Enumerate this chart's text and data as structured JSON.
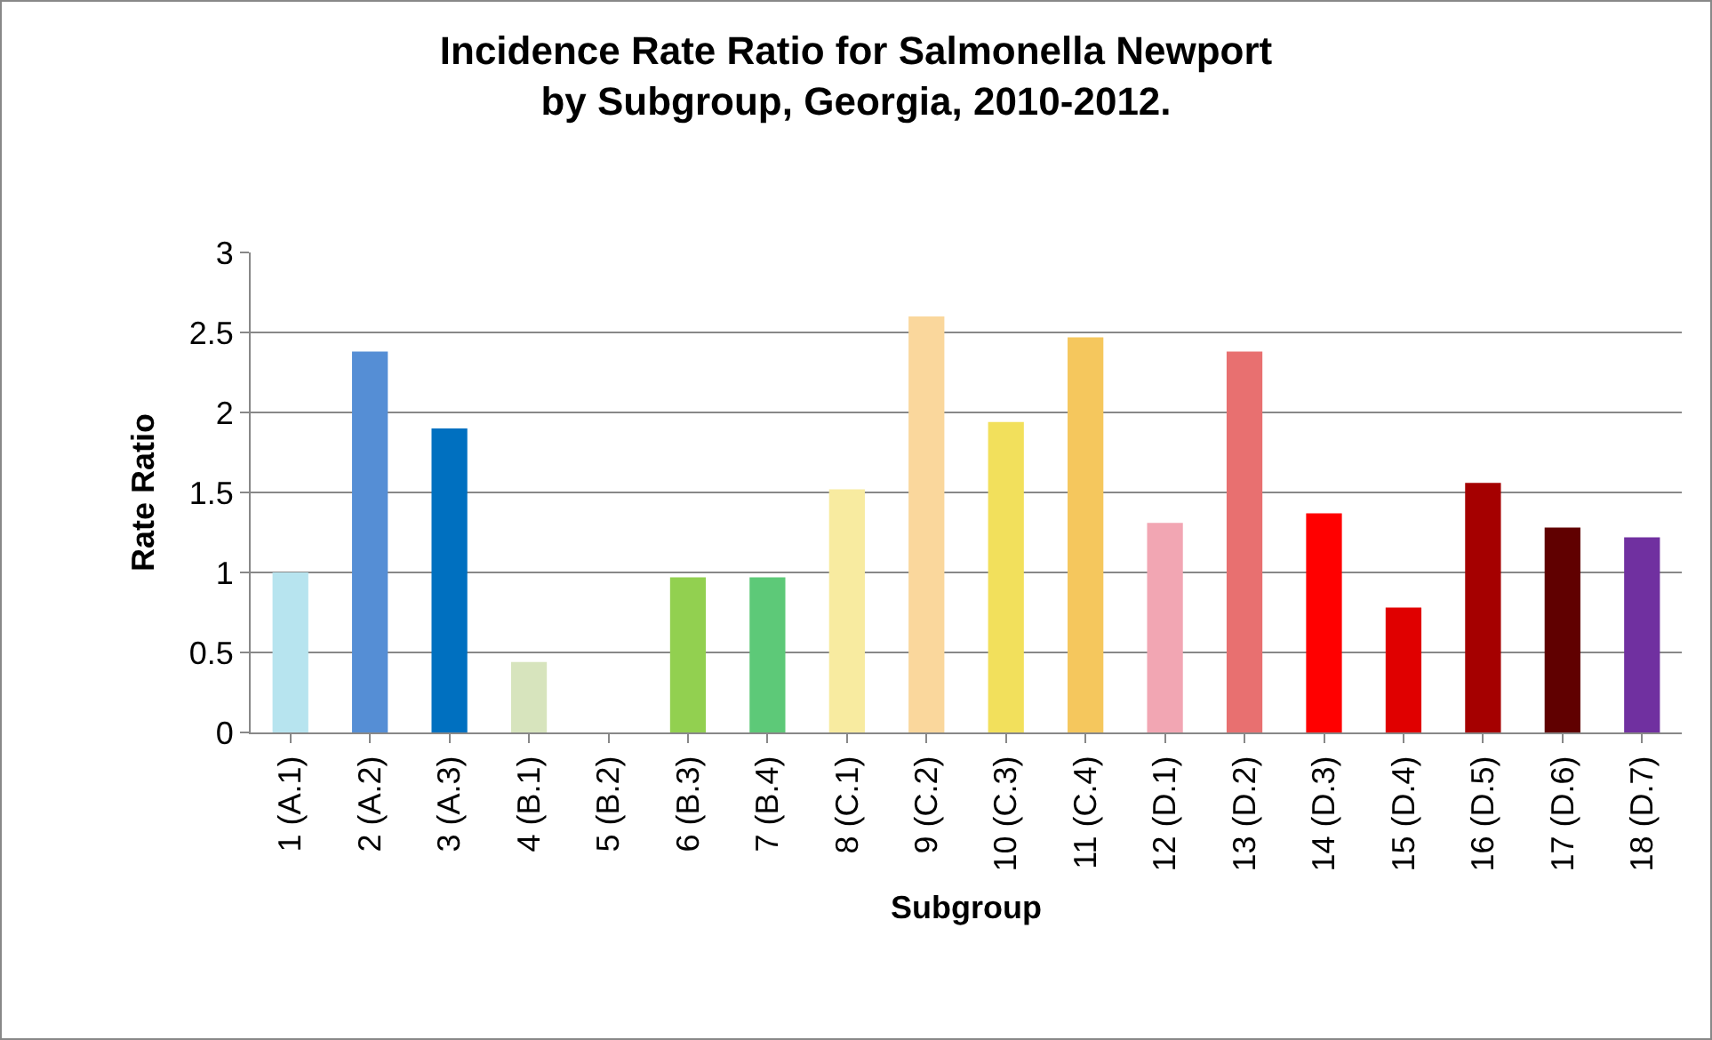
{
  "chart_data": {
    "type": "bar",
    "title": "Incidence Rate Ratio for Salmonella Newport\nby Subgroup, Georgia, 2010-2012.",
    "xlabel": "Subgroup",
    "ylabel": "Rate Ratio",
    "categories": [
      "1 (A.1)",
      "2 (A.2)",
      "3 (A.3)",
      "4 (B.1)",
      "5 (B.2)",
      "6 (B.3)",
      "7 (B.4)",
      "8 (C.1)",
      "9 (C.2)",
      "10 (C.3)",
      "11 (C.4)",
      "12 (D.1)",
      "13 (D.2)",
      "14 (D.3)",
      "15 (D.4)",
      "16 (D.5)",
      "17 (D.6)",
      "18 (D.7)"
    ],
    "values": [
      1.0,
      2.38,
      1.9,
      0.44,
      0,
      0.97,
      0.97,
      1.52,
      2.6,
      1.94,
      2.47,
      1.31,
      2.38,
      1.37,
      0.78,
      1.56,
      1.28,
      1.22
    ],
    "colors": [
      "#b7e4ef",
      "#558ed5",
      "#0070c0",
      "#d7e4bd",
      "#c0c0c0",
      "#92d050",
      "#5dc978",
      "#f8eba0",
      "#fad79c",
      "#f2e05c",
      "#f5c75d",
      "#f2a6b3",
      "#e87070",
      "#ff0000",
      "#e00000",
      "#a50000",
      "#600000",
      "#7030a0"
    ],
    "ylim": [
      0,
      3
    ],
    "yticks": [
      0,
      0.5,
      1,
      1.5,
      2,
      2.5,
      3
    ],
    "grid": "y"
  }
}
